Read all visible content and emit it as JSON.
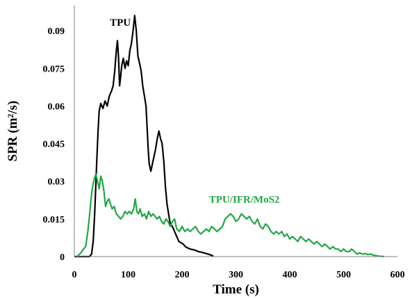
{
  "chart_data": {
    "type": "line",
    "title": "",
    "xlabel": "Time (s)",
    "ylabel": "SPR (m²/s)",
    "xlim": [
      0,
      600
    ],
    "ylim": [
      0,
      0.1
    ],
    "x_ticks": [
      0,
      100,
      200,
      300,
      400,
      500,
      600
    ],
    "x_tick_labels": [
      "0",
      "100",
      "200",
      "300",
      "400",
      "500",
      "600"
    ],
    "y_ticks": [
      0,
      0.015,
      0.03,
      0.045,
      0.06,
      0.075,
      0.09
    ],
    "y_tick_labels": [
      "0",
      "0.015",
      "0.03",
      "0.045",
      "0.06",
      "0.075",
      "0.09"
    ],
    "grid": false,
    "legend": "none",
    "series": [
      {
        "name": "TPU",
        "color": "#000000",
        "points": [
          [
            0,
            0
          ],
          [
            28,
            0
          ],
          [
            32,
            0.001
          ],
          [
            35,
            0.006
          ],
          [
            38,
            0.018
          ],
          [
            41,
            0.035
          ],
          [
            44,
            0.05
          ],
          [
            46,
            0.058
          ],
          [
            49,
            0.061
          ],
          [
            53,
            0.059
          ],
          [
            57,
            0.062
          ],
          [
            61,
            0.06
          ],
          [
            65,
            0.064
          ],
          [
            69,
            0.066
          ],
          [
            72,
            0.068
          ],
          [
            75,
            0.074
          ],
          [
            78,
            0.082
          ],
          [
            80,
            0.086
          ],
          [
            82,
            0.079
          ],
          [
            84,
            0.068
          ],
          [
            86,
            0.072
          ],
          [
            88,
            0.076
          ],
          [
            91,
            0.079
          ],
          [
            94,
            0.075
          ],
          [
            97,
            0.078
          ],
          [
            100,
            0.076
          ],
          [
            103,
            0.082
          ],
          [
            106,
            0.085
          ],
          [
            109,
            0.09
          ],
          [
            112,
            0.096
          ],
          [
            115,
            0.09
          ],
          [
            118,
            0.08
          ],
          [
            121,
            0.077
          ],
          [
            124,
            0.074
          ],
          [
            127,
            0.068
          ],
          [
            130,
            0.064
          ],
          [
            133,
            0.06
          ],
          [
            135,
            0.052
          ],
          [
            137,
            0.043
          ],
          [
            139,
            0.037
          ],
          [
            142,
            0.034
          ],
          [
            145,
            0.037
          ],
          [
            148,
            0.04
          ],
          [
            151,
            0.043
          ],
          [
            154,
            0.047
          ],
          [
            157,
            0.05
          ],
          [
            160,
            0.047
          ],
          [
            163,
            0.045
          ],
          [
            166,
            0.038
          ],
          [
            169,
            0.028
          ],
          [
            172,
            0.021
          ],
          [
            175,
            0.017
          ],
          [
            178,
            0.013
          ],
          [
            182,
            0.012
          ],
          [
            186,
            0.01
          ],
          [
            190,
            0.008
          ],
          [
            194,
            0.006
          ],
          [
            198,
            0.0055
          ],
          [
            202,
            0.005
          ],
          [
            206,
            0.004
          ],
          [
            210,
            0.0035
          ],
          [
            215,
            0.003
          ],
          [
            220,
            0.0028
          ],
          [
            225,
            0.0025
          ],
          [
            230,
            0.002
          ],
          [
            235,
            0.0018
          ],
          [
            240,
            0.0015
          ],
          [
            245,
            0.0012
          ],
          [
            250,
            0.0009
          ],
          [
            255,
            0.0005
          ],
          [
            258,
            0.0002
          ]
        ]
      },
      {
        "name": "TPU/IFR/MoS2",
        "color": "#22a745",
        "points": [
          [
            5,
            0
          ],
          [
            12,
            0.0015
          ],
          [
            17,
            0.003
          ],
          [
            21,
            0.004
          ],
          [
            25,
            0.01
          ],
          [
            28,
            0.016
          ],
          [
            31,
            0.023
          ],
          [
            34,
            0.028
          ],
          [
            37,
            0.031
          ],
          [
            40,
            0.033
          ],
          [
            43,
            0.03
          ],
          [
            46,
            0.027
          ],
          [
            49,
            0.032
          ],
          [
            52,
            0.03
          ],
          [
            55,
            0.026
          ],
          [
            58,
            0.02
          ],
          [
            61,
            0.022
          ],
          [
            64,
            0.023
          ],
          [
            67,
            0.021
          ],
          [
            70,
            0.019
          ],
          [
            74,
            0.02
          ],
          [
            78,
            0.017
          ],
          [
            82,
            0.016
          ],
          [
            86,
            0.015
          ],
          [
            90,
            0.016
          ],
          [
            94,
            0.018
          ],
          [
            98,
            0.017
          ],
          [
            102,
            0.018
          ],
          [
            106,
            0.017
          ],
          [
            110,
            0.019
          ],
          [
            113,
            0.023
          ],
          [
            116,
            0.018
          ],
          [
            119,
            0.017
          ],
          [
            122,
            0.019
          ],
          [
            126,
            0.016
          ],
          [
            130,
            0.017
          ],
          [
            134,
            0.015
          ],
          [
            138,
            0.018
          ],
          [
            142,
            0.016
          ],
          [
            146,
            0.017
          ],
          [
            150,
            0.016
          ],
          [
            154,
            0.015
          ],
          [
            158,
            0.016
          ],
          [
            162,
            0.014
          ],
          [
            166,
            0.013
          ],
          [
            170,
            0.015
          ],
          [
            174,
            0.014
          ],
          [
            178,
            0.012
          ],
          [
            182,
            0.014
          ],
          [
            186,
            0.015
          ],
          [
            190,
            0.011
          ],
          [
            195,
            0.01
          ],
          [
            200,
            0.012
          ],
          [
            205,
            0.01
          ],
          [
            210,
            0.011
          ],
          [
            215,
            0.01
          ],
          [
            220,
            0.011
          ],
          [
            225,
            0.012
          ],
          [
            230,
            0.01
          ],
          [
            235,
            0.009
          ],
          [
            240,
            0.01
          ],
          [
            245,
            0.011
          ],
          [
            250,
            0.01
          ],
          [
            255,
            0.012
          ],
          [
            260,
            0.011
          ],
          [
            265,
            0.01
          ],
          [
            270,
            0.011
          ],
          [
            275,
            0.012
          ],
          [
            280,
            0.015
          ],
          [
            285,
            0.016
          ],
          [
            290,
            0.017
          ],
          [
            295,
            0.016
          ],
          [
            300,
            0.014
          ],
          [
            305,
            0.015
          ],
          [
            310,
            0.017
          ],
          [
            315,
            0.016
          ],
          [
            320,
            0.015
          ],
          [
            325,
            0.016
          ],
          [
            330,
            0.014
          ],
          [
            335,
            0.013
          ],
          [
            340,
            0.015
          ],
          [
            345,
            0.012
          ],
          [
            350,
            0.011
          ],
          [
            355,
            0.013
          ],
          [
            360,
            0.012
          ],
          [
            365,
            0.01
          ],
          [
            370,
            0.009
          ],
          [
            375,
            0.01
          ],
          [
            380,
            0.009
          ],
          [
            385,
            0.01
          ],
          [
            390,
            0.008
          ],
          [
            395,
            0.009
          ],
          [
            400,
            0.007
          ],
          [
            405,
            0.008
          ],
          [
            410,
            0.007
          ],
          [
            415,
            0.006
          ],
          [
            420,
            0.008
          ],
          [
            425,
            0.007
          ],
          [
            430,
            0.006
          ],
          [
            435,
            0.007
          ],
          [
            440,
            0.006
          ],
          [
            445,
            0.005
          ],
          [
            450,
            0.006
          ],
          [
            455,
            0.005
          ],
          [
            460,
            0.004
          ],
          [
            465,
            0.005
          ],
          [
            470,
            0.004
          ],
          [
            475,
            0.003
          ],
          [
            480,
            0.004
          ],
          [
            485,
            0.003
          ],
          [
            490,
            0.003
          ],
          [
            495,
            0.002
          ],
          [
            500,
            0.003
          ],
          [
            505,
            0.002
          ],
          [
            510,
            0.002
          ],
          [
            515,
            0.003
          ],
          [
            520,
            0.002
          ],
          [
            525,
            0.001
          ],
          [
            530,
            0.0015
          ],
          [
            535,
            0.001
          ],
          [
            540,
            0.0012
          ],
          [
            545,
            0.0008
          ],
          [
            550,
            0.001
          ],
          [
            555,
            0.0006
          ],
          [
            560,
            0.0004
          ],
          [
            565,
            0.0002
          ],
          [
            570,
            0.0001
          ],
          [
            575,
            0
          ]
        ]
      }
    ],
    "annotations": [
      {
        "text": "TPU",
        "x": 115,
        "y": 0.092,
        "color": "#000000",
        "anchor": "end"
      },
      {
        "text": "TPU/IFR/MoS2",
        "x": 250,
        "y": 0.0215,
        "color": "#22a745",
        "anchor": "start"
      }
    ]
  }
}
